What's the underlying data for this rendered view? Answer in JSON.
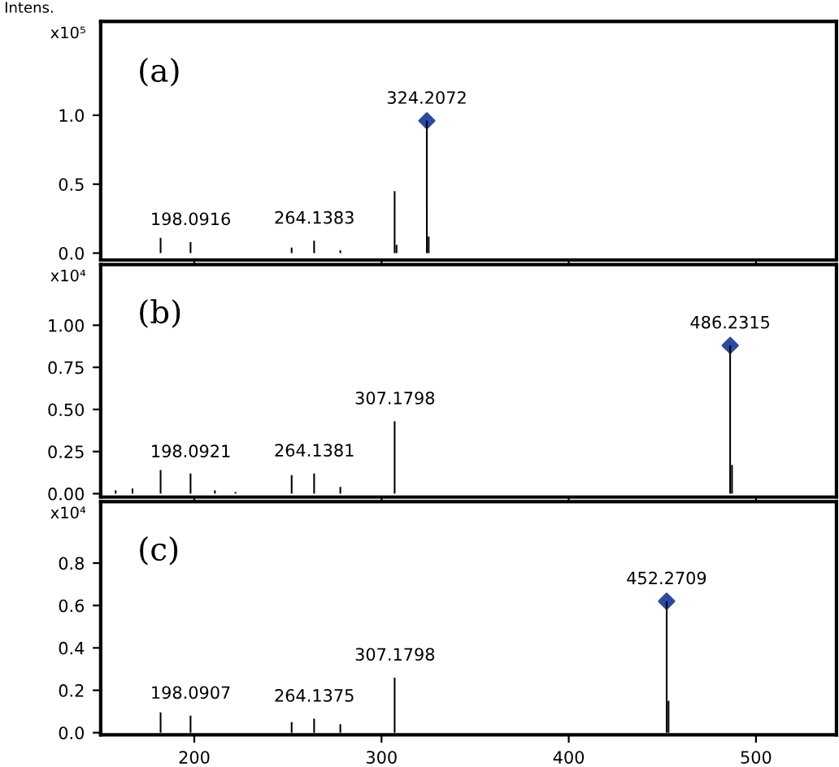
{
  "chart_data": [
    {
      "type": "bar",
      "ylabel": "x10⁵",
      "xlim": [
        150,
        543
      ],
      "xticks": [
        200,
        300,
        400,
        500
      ],
      "ylim": [
        -0.05,
        1.68
      ],
      "yticks": [
        {
          "value": 0,
          "label": "0.0"
        },
        {
          "value": 0.5,
          "label": "0.5"
        },
        {
          "value": 1,
          "label": "1.0"
        }
      ],
      "tick_labels": "y",
      "grid": false,
      "legend": false,
      "series": [
        {
          "color": "#000000",
          "x": [
            182,
            198,
            252,
            264,
            278,
            307,
            308,
            324.2,
            325.2
          ],
          "values": [
            0.11,
            0.08,
            0.04,
            0.09,
            0.02,
            0.45,
            0.06,
            0.96,
            0.12
          ]
        },
        {
          "type": "scatter",
          "marker": "diamond",
          "color": "#2e4a9e",
          "x": [
            324.2072
          ],
          "values": [
            0.96
          ]
        }
      ],
      "annotations": [
        "Intens.",
        "(a)",
        {
          "text": "324.2072",
          "x": 324.2072,
          "y": 0.96
        },
        {
          "text": "198.0916",
          "x": 198.0916,
          "y": 0.08
        },
        {
          "text": "264.1383",
          "x": 264.1383,
          "y": 0.09
        }
      ]
    },
    {
      "type": "bar",
      "ylabel": "x10⁴",
      "xlim": [
        150,
        543
      ],
      "xticks": [
        200,
        300,
        400,
        500
      ],
      "ylim": [
        -0.02,
        1.36
      ],
      "yticks": [
        {
          "value": 0,
          "label": "0.00"
        },
        {
          "value": 0.25,
          "label": "0.25"
        },
        {
          "value": 0.5,
          "label": "0.50"
        },
        {
          "value": 0.75,
          "label": "0.75"
        },
        {
          "value": 1,
          "label": "1.00"
        }
      ],
      "tick_labels": "y",
      "grid": false,
      "legend": false,
      "series": [
        {
          "color": "#000000",
          "x": [
            158,
            167,
            182,
            198,
            211,
            222,
            252,
            264,
            278,
            307,
            486.2,
            487.2
          ],
          "values": [
            0.02,
            0.03,
            0.14,
            0.12,
            0.02,
            0.01,
            0.11,
            0.12,
            0.04,
            0.43,
            0.88,
            0.17
          ]
        },
        {
          "type": "scatter",
          "marker": "diamond",
          "color": "#2e4a9e",
          "x": [
            486.2315
          ],
          "values": [
            0.88
          ]
        }
      ],
      "annotations": [
        "(b)",
        {
          "text": "486.2315",
          "x": 486.2315,
          "y": 0.88
        },
        {
          "text": "307.1798",
          "x": 307.1798,
          "y": 0.43
        },
        {
          "text": "198.0921",
          "x": 198.0921,
          "y": 0.115
        },
        {
          "text": "264.1381",
          "x": 264.1381,
          "y": 0.12
        }
      ]
    },
    {
      "type": "bar",
      "ylabel": "x10⁴",
      "xlim": [
        150,
        543
      ],
      "xticks": [
        200,
        300,
        400,
        500
      ],
      "ylim": [
        -0.01,
        1.09
      ],
      "yticks": [
        {
          "value": 0,
          "label": "0.0"
        },
        {
          "value": 0.2,
          "label": "0.2"
        },
        {
          "value": 0.4,
          "label": "0.4"
        },
        {
          "value": 0.6,
          "label": "0.6"
        },
        {
          "value": 0.8,
          "label": "0.8"
        }
      ],
      "grid": false,
      "legend": false,
      "series": [
        {
          "color": "#000000",
          "x": [
            182,
            198,
            252,
            264,
            278,
            307,
            452.3,
            453.3
          ],
          "values": [
            0.096,
            0.08,
            0.05,
            0.066,
            0.04,
            0.26,
            0.62,
            0.15
          ]
        },
        {
          "type": "scatter",
          "marker": "diamond",
          "color": "#2e4a9e",
          "x": [
            452.2709
          ],
          "values": [
            0.62
          ]
        }
      ],
      "annotations": [
        "(c)",
        {
          "text": "452.2709",
          "x": 452.2709,
          "y": 0.62
        },
        {
          "text": "307.1798",
          "x": 307.1798,
          "y": 0.26
        },
        {
          "text": "198.0907",
          "x": 198.0907,
          "y": 0.08
        },
        {
          "text": "264.1375",
          "x": 264.1375,
          "y": 0.066
        }
      ]
    }
  ]
}
